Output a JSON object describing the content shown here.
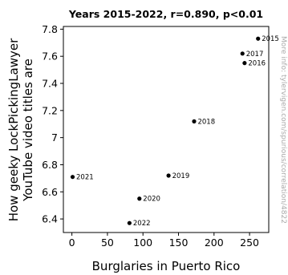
{
  "chart_data": {
    "type": "scatter",
    "title": "Years 2015-2022, r=0.890, p<0.01",
    "xlabel": "Burglaries in Puerto Rico",
    "ylabel": [
      "How geeky LockPickingLawyer",
      "YouTube video titles are"
    ],
    "xlim": [
      -12,
      277
    ],
    "ylim": [
      6.3,
      7.82
    ],
    "xticks": [
      0,
      50,
      100,
      150,
      200,
      250
    ],
    "yticks": [
      6.4,
      6.6,
      6.8,
      7,
      7.2,
      7.4,
      7.6,
      7.8
    ],
    "points": [
      {
        "label": "2015",
        "x": 262,
        "y": 7.73
      },
      {
        "label": "2016",
        "x": 243,
        "y": 7.55
      },
      {
        "label": "2017",
        "x": 240,
        "y": 7.62
      },
      {
        "label": "2018",
        "x": 172,
        "y": 7.12
      },
      {
        "label": "2019",
        "x": 136,
        "y": 6.72
      },
      {
        "label": "2020",
        "x": 95,
        "y": 6.55
      },
      {
        "label": "2021",
        "x": 1,
        "y": 6.71
      },
      {
        "label": "2022",
        "x": 81,
        "y": 6.37
      }
    ],
    "grid": false,
    "point_color": "#000000"
  },
  "watermark": "More info: tylervigen.com/spurious/correlation/4822"
}
